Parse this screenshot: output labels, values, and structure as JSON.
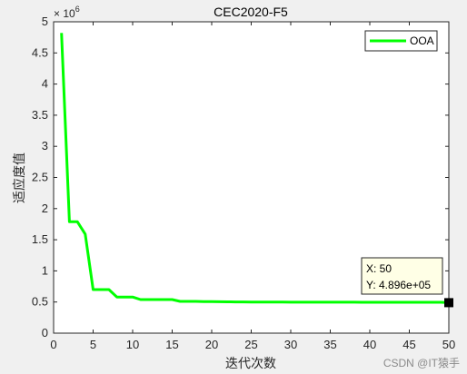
{
  "chart_data": {
    "type": "line",
    "title": "CEC2020-F5",
    "xlabel": "迭代次数",
    "ylabel": "适应度值",
    "y_multiplier": "× 10",
    "y_multiplier_exp": "6",
    "xlim": [
      0,
      50
    ],
    "ylim": [
      0,
      5000000
    ],
    "xticks": [
      0,
      5,
      10,
      15,
      20,
      25,
      30,
      35,
      40,
      45,
      50
    ],
    "yticks": [
      0,
      500000,
      1000000,
      1500000,
      2000000,
      2500000,
      3000000,
      3500000,
      4000000,
      4500000,
      5000000
    ],
    "ytick_labels": [
      "0",
      "0.5",
      "1",
      "1.5",
      "2",
      "2.5",
      "3",
      "3.5",
      "4",
      "4.5",
      "5"
    ],
    "legend_position": "top-right",
    "grid": false,
    "series": [
      {
        "name": "OOA",
        "color": "#00ff00",
        "x": [
          1,
          2,
          3,
          4,
          5,
          6,
          7,
          8,
          9,
          10,
          11,
          12,
          13,
          14,
          15,
          16,
          17,
          18,
          19,
          20,
          21,
          22,
          23,
          24,
          25,
          26,
          27,
          28,
          29,
          30,
          31,
          32,
          33,
          34,
          35,
          36,
          37,
          38,
          39,
          40,
          41,
          42,
          43,
          44,
          45,
          46,
          47,
          48,
          49,
          50
        ],
        "values": [
          4820000,
          1790000,
          1790000,
          1590000,
          700000,
          700000,
          700000,
          580000,
          580000,
          580000,
          540000,
          540000,
          540000,
          540000,
          540000,
          510000,
          510000,
          510000,
          508000,
          506000,
          504000,
          503000,
          502000,
          501000,
          500000,
          499500,
          499000,
          498500,
          498000,
          497500,
          497200,
          497000,
          496900,
          496800,
          496700,
          496600,
          496500,
          496400,
          496300,
          496200,
          496100,
          496000,
          496000,
          496000,
          496000,
          496000,
          496000,
          496000,
          496000,
          489600
        ]
      }
    ],
    "datatip": {
      "x_text": "X: 50",
      "y_text": "Y: 4.896e+05",
      "x": 50,
      "y": 489600
    }
  },
  "watermark": "CSDN @IT猿手"
}
